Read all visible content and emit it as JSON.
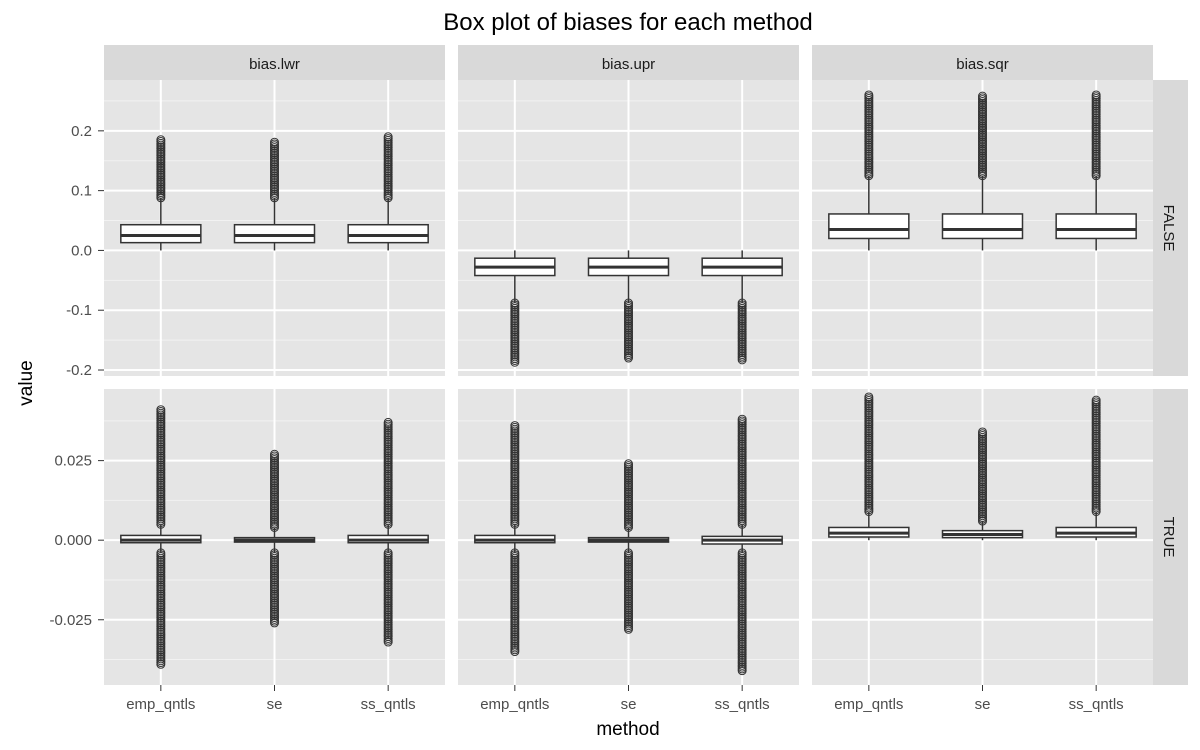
{
  "chart_data": {
    "type": "boxplot",
    "title": "Box plot of biases for each method",
    "xlabel": "method",
    "ylabel": "value",
    "categories": [
      "emp_qntls",
      "se",
      "ss_qntls"
    ],
    "facet_cols": [
      "bias.lwr",
      "bias.upr",
      "bias.sqr"
    ],
    "facet_rows": [
      "FALSE",
      "TRUE"
    ],
    "rows": [
      {
        "label": "FALSE",
        "ylim": [
          -0.21,
          0.285
        ],
        "yticks": [
          -0.2,
          -0.1,
          0.0,
          0.1,
          0.2
        ],
        "yticklabels": [
          "-0.2",
          "-0.1",
          "0.0",
          "0.1",
          "0.2"
        ]
      },
      {
        "label": "TRUE",
        "ylim": [
          -0.0455,
          0.0475
        ],
        "yticks": [
          -0.025,
          0.0,
          0.025
        ],
        "yticklabels": [
          "-0.025",
          "0.000",
          "0.025"
        ]
      }
    ],
    "panels": [
      {
        "row": "FALSE",
        "col": "bias.lwr",
        "boxes": [
          {
            "method": "emp_qntls",
            "whisker_low": 0.0,
            "q1": 0.013,
            "median": 0.025,
            "q3": 0.043,
            "whisker_high": 0.088,
            "outliers_high": [
              0.088,
              0.185
            ],
            "outliers_low": null
          },
          {
            "method": "se",
            "whisker_low": 0.0,
            "q1": 0.013,
            "median": 0.025,
            "q3": 0.043,
            "whisker_high": 0.088,
            "outliers_high": [
              0.088,
              0.181
            ],
            "outliers_low": null
          },
          {
            "method": "ss_qntls",
            "whisker_low": 0.0,
            "q1": 0.013,
            "median": 0.025,
            "q3": 0.043,
            "whisker_high": 0.088,
            "outliers_high": [
              0.088,
              0.19
            ],
            "outliers_low": null
          }
        ]
      },
      {
        "row": "FALSE",
        "col": "bias.upr",
        "boxes": [
          {
            "method": "emp_qntls",
            "whisker_low": -0.088,
            "q1": -0.042,
            "median": -0.028,
            "q3": -0.013,
            "whisker_high": 0.0,
            "outliers_high": null,
            "outliers_low": [
              -0.187,
              -0.088
            ]
          },
          {
            "method": "se",
            "whisker_low": -0.088,
            "q1": -0.042,
            "median": -0.028,
            "q3": -0.013,
            "whisker_high": 0.0,
            "outliers_high": null,
            "outliers_low": [
              -0.18,
              -0.088
            ]
          },
          {
            "method": "ss_qntls",
            "whisker_low": -0.088,
            "q1": -0.042,
            "median": -0.028,
            "q3": -0.013,
            "whisker_high": 0.0,
            "outliers_high": null,
            "outliers_low": [
              -0.183,
              -0.088
            ]
          }
        ]
      },
      {
        "row": "FALSE",
        "col": "bias.sqr",
        "boxes": [
          {
            "method": "emp_qntls",
            "whisker_low": 0.0,
            "q1": 0.02,
            "median": 0.035,
            "q3": 0.061,
            "whisker_high": 0.125,
            "outliers_high": [
              0.125,
              0.26
            ],
            "outliers_low": null
          },
          {
            "method": "se",
            "whisker_low": 0.0,
            "q1": 0.02,
            "median": 0.035,
            "q3": 0.061,
            "whisker_high": 0.125,
            "outliers_high": [
              0.125,
              0.258
            ],
            "outliers_low": null
          },
          {
            "method": "ss_qntls",
            "whisker_low": 0.0,
            "q1": 0.02,
            "median": 0.035,
            "q3": 0.061,
            "whisker_high": 0.125,
            "outliers_high": [
              0.125,
              0.26
            ],
            "outliers_low": null
          }
        ]
      },
      {
        "row": "TRUE",
        "col": "bias.lwr",
        "boxes": [
          {
            "method": "emp_qntls",
            "whisker_low": -0.004,
            "q1": -0.0008,
            "median": 0.0,
            "q3": 0.0015,
            "whisker_high": 0.005,
            "outliers_high": [
              0.005,
              0.041
            ],
            "outliers_low": [
              -0.039,
              -0.004
            ]
          },
          {
            "method": "se",
            "whisker_low": -0.004,
            "q1": -0.0006,
            "median": 0.0,
            "q3": 0.0008,
            "whisker_high": 0.004,
            "outliers_high": [
              0.004,
              0.027
            ],
            "outliers_low": [
              -0.026,
              -0.004
            ]
          },
          {
            "method": "ss_qntls",
            "whisker_low": -0.004,
            "q1": -0.0008,
            "median": 0.0,
            "q3": 0.0015,
            "whisker_high": 0.005,
            "outliers_high": [
              0.005,
              0.037
            ],
            "outliers_low": [
              -0.032,
              -0.004
            ]
          }
        ]
      },
      {
        "row": "TRUE",
        "col": "bias.upr",
        "boxes": [
          {
            "method": "emp_qntls",
            "whisker_low": -0.004,
            "q1": -0.0008,
            "median": 0.0,
            "q3": 0.0015,
            "whisker_high": 0.005,
            "outliers_high": [
              0.005,
              0.036
            ],
            "outliers_low": [
              -0.035,
              -0.004
            ]
          },
          {
            "method": "se",
            "whisker_low": -0.004,
            "q1": -0.0006,
            "median": 0.0,
            "q3": 0.0008,
            "whisker_high": 0.004,
            "outliers_high": [
              0.004,
              0.024
            ],
            "outliers_low": [
              -0.028,
              -0.004
            ]
          },
          {
            "method": "ss_qntls",
            "whisker_low": -0.004,
            "q1": -0.0012,
            "median": 0.0,
            "q3": 0.0012,
            "whisker_high": 0.005,
            "outliers_high": [
              0.005,
              0.038
            ],
            "outliers_low": [
              -0.041,
              -0.004
            ]
          }
        ]
      },
      {
        "row": "TRUE",
        "col": "bias.sqr",
        "boxes": [
          {
            "method": "emp_qntls",
            "whisker_low": 0.0,
            "q1": 0.001,
            "median": 0.0022,
            "q3": 0.004,
            "whisker_high": 0.009,
            "outliers_high": [
              0.009,
              0.045
            ],
            "outliers_low": null
          },
          {
            "method": "se",
            "whisker_low": 0.0,
            "q1": 0.0008,
            "median": 0.0018,
            "q3": 0.003,
            "whisker_high": 0.006,
            "outliers_high": [
              0.006,
              0.034
            ],
            "outliers_low": null
          },
          {
            "method": "ss_qntls",
            "whisker_low": 0.0,
            "q1": 0.001,
            "median": 0.0022,
            "q3": 0.004,
            "whisker_high": 0.009,
            "outliers_high": [
              0.009,
              0.044
            ],
            "outliers_low": null
          }
        ]
      }
    ],
    "grid": true,
    "legend": "none",
    "colors": {
      "panel_background": "#e5e5e5",
      "strip_background": "#d9d9d9",
      "grid_major": "#ffffff",
      "grid_minor": "#f2f2f2",
      "box_fill": "#ffffff",
      "box_stroke": "#333333"
    }
  }
}
